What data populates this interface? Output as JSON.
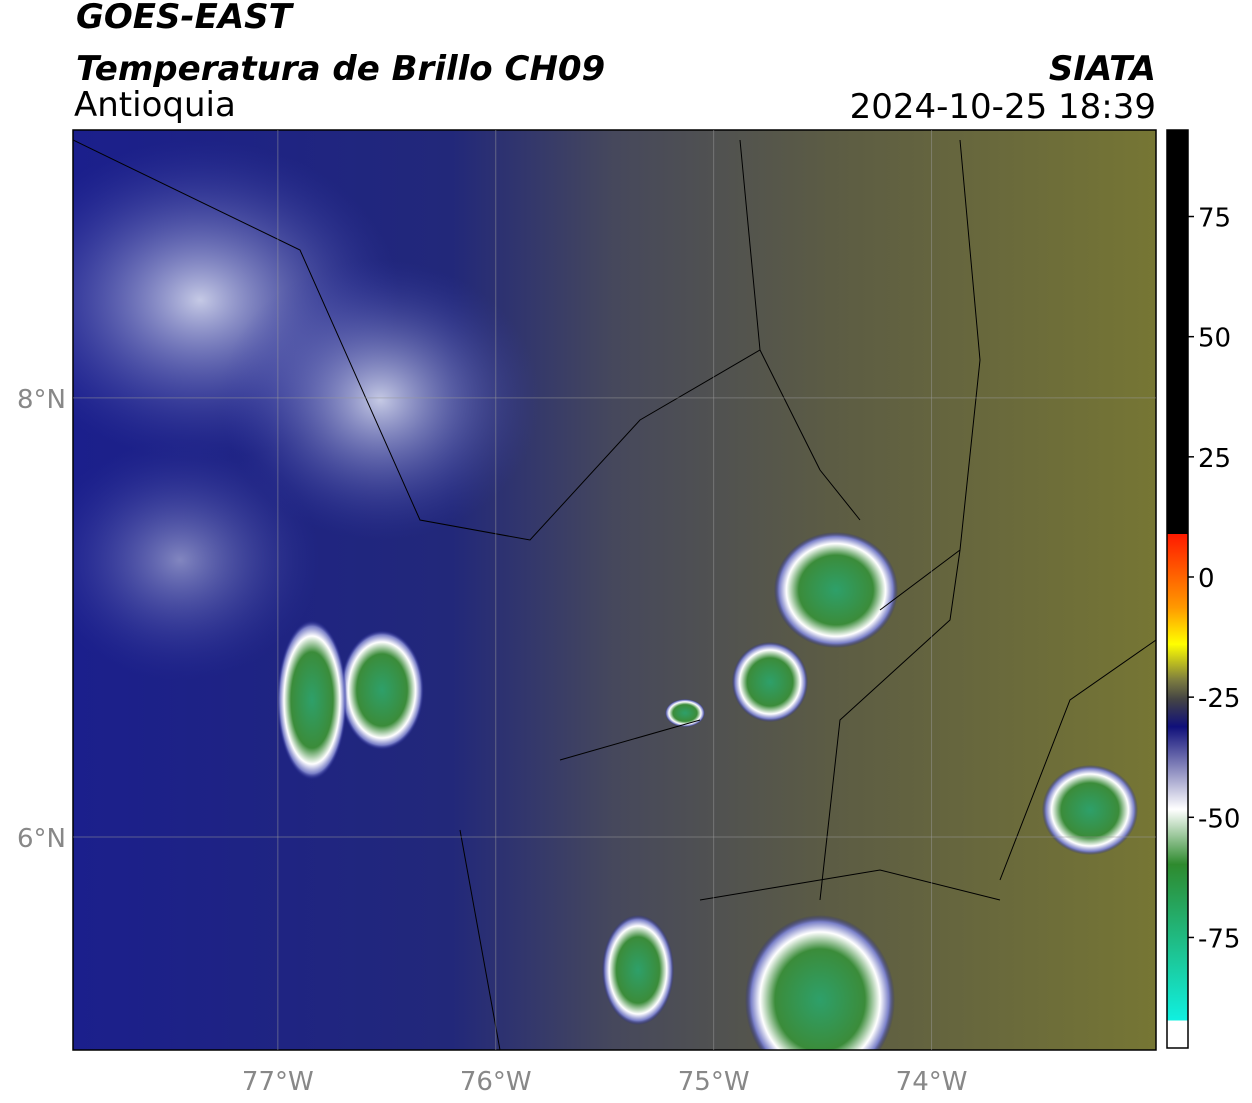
{
  "header": {
    "title": "GOES-EAST",
    "subtitle": "Temperatura de Brillo CH09",
    "region": "Antioquia",
    "source": "SIATA",
    "timestamp": "2024-10-25 18:39"
  },
  "map": {
    "xlim": [
      -77.94,
      -72.97
    ],
    "ylim": [
      5.03,
      9.22
    ],
    "xticks": [
      {
        "value": -77,
        "label": "77°W"
      },
      {
        "value": -76,
        "label": "76°W"
      },
      {
        "value": -75,
        "label": "75°W"
      },
      {
        "value": -74,
        "label": "74°W"
      }
    ],
    "yticks": [
      {
        "value": 8,
        "label": "8°N"
      },
      {
        "value": 6,
        "label": "6°N"
      }
    ]
  },
  "colorbar": {
    "lim": [
      -98,
      93
    ],
    "ticks": [
      75,
      50,
      25,
      0,
      -25,
      -50,
      -75
    ]
  }
}
